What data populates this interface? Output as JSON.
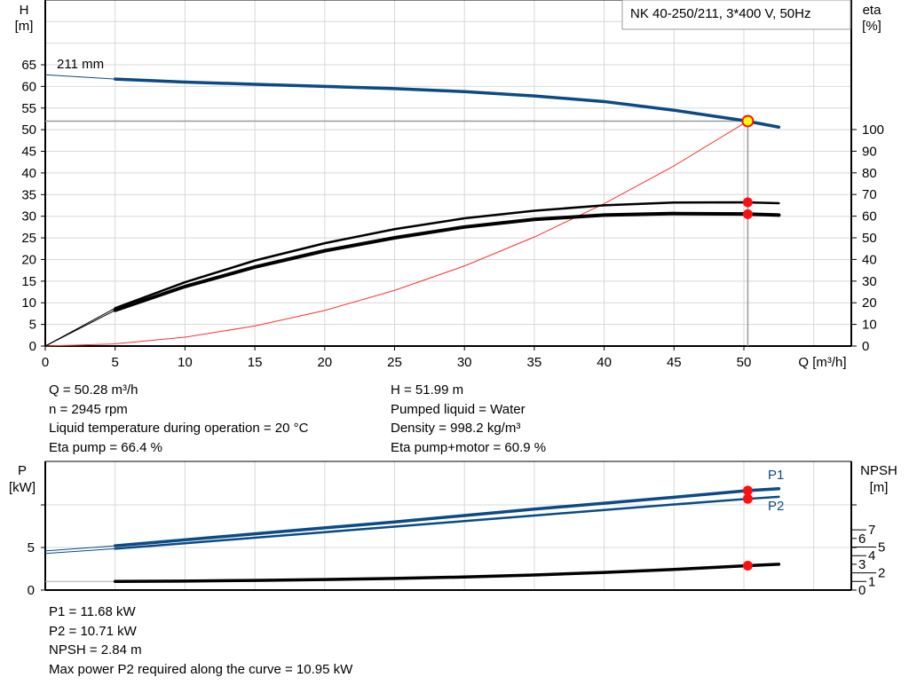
{
  "chart_data": [
    {
      "type": "line",
      "title": "NK 40-250/211, 3*400 V, 50Hz",
      "xlabel": "Q [m³/h]",
      "ylabel": "H\n[m]",
      "y2label": "eta\n[%]",
      "xlim": [
        0,
        57.6
      ],
      "ylim": [
        0,
        80
      ],
      "y2lim": [
        0,
        160
      ],
      "x_ticks": [
        0,
        5,
        10,
        15,
        20,
        25,
        30,
        35,
        40,
        45,
        50
      ],
      "y_ticks": [
        0,
        5,
        10,
        15,
        20,
        25,
        30,
        35,
        40,
        45,
        50,
        55,
        60,
        65
      ],
      "y2_ticks": [
        0,
        10,
        20,
        30,
        40,
        50,
        60,
        70,
        80,
        90,
        100
      ],
      "grid": true,
      "impeller_label": "211 mm",
      "series": [
        {
          "id": "head",
          "axis": "left",
          "color": "#0b4a85",
          "x": [
            0,
            5,
            10,
            15,
            20,
            25,
            30,
            35,
            40,
            45,
            50,
            52.5
          ],
          "y": [
            62.7,
            61.7,
            61.0,
            60.5,
            60.0,
            59.5,
            58.8,
            57.8,
            56.5,
            54.5,
            52.1,
            50.6
          ]
        },
        {
          "id": "eta_pump",
          "axis": "right",
          "color": "#000000",
          "x": [
            0,
            5,
            10,
            15,
            20,
            25,
            30,
            35,
            40,
            45,
            50,
            52.5
          ],
          "y": [
            0,
            17.5,
            29.5,
            39.5,
            47.5,
            54,
            59,
            62.5,
            65,
            66.3,
            66.4,
            66.0
          ]
        },
        {
          "id": "eta_pump_motor",
          "axis": "right",
          "color": "#000000",
          "x": [
            0,
            5,
            10,
            15,
            20,
            25,
            30,
            35,
            40,
            45,
            50,
            52.5
          ],
          "y": [
            0,
            16.5,
            27.5,
            36.5,
            44,
            50,
            55,
            58.5,
            60.5,
            61.2,
            61,
            60.5
          ]
        },
        {
          "id": "system_curve",
          "axis": "left",
          "color": "#ff3030",
          "x": [
            0,
            5,
            10,
            15,
            20,
            25,
            30,
            35,
            40,
            45,
            50.28
          ],
          "y": [
            0,
            0.51,
            2.06,
            4.63,
            8.23,
            12.86,
            18.51,
            25.19,
            32.9,
            41.64,
            51.99
          ]
        }
      ],
      "duty_point": {
        "x": 50.28,
        "y": 51.99
      },
      "markers": [
        {
          "x": 50.28,
          "y2": 66.4
        },
        {
          "x": 50.28,
          "y2": 60.9
        }
      ]
    },
    {
      "type": "line",
      "ylabel": "P\n[kW]",
      "y2label": "NPSH\n[m]",
      "xlim": [
        0,
        57.6
      ],
      "ylim": [
        0,
        15
      ],
      "y_ticks": [
        0,
        5,
        10
      ],
      "y_tick_labels": [
        "0",
        "5",
        ""
      ],
      "y2_ticks": [
        0,
        1,
        2,
        3,
        4,
        5,
        6,
        7
      ],
      "grid": true,
      "series": [
        {
          "id": "P1",
          "name": "P1",
          "axis": "left",
          "color": "#0b4a85",
          "x": [
            0,
            5,
            10,
            15,
            20,
            25,
            30,
            35,
            40,
            45,
            50.28,
            52.5
          ],
          "y": [
            4.6,
            5.2,
            5.9,
            6.6,
            7.3,
            8.0,
            8.75,
            9.5,
            10.2,
            10.9,
            11.68,
            11.9
          ]
        },
        {
          "id": "P2",
          "name": "P2",
          "axis": "left",
          "color": "#0b4a85",
          "x": [
            0,
            5,
            10,
            15,
            20,
            25,
            30,
            35,
            40,
            45,
            50.28,
            52.5
          ],
          "y": [
            4.3,
            4.85,
            5.5,
            6.15,
            6.8,
            7.45,
            8.1,
            8.75,
            9.4,
            10.05,
            10.71,
            10.95
          ]
        },
        {
          "id": "NPSH",
          "axis": "right",
          "color": "#000000",
          "x": [
            0,
            5,
            10,
            15,
            20,
            25,
            30,
            35,
            40,
            45,
            50.28,
            52.5
          ],
          "y": [
            1.0,
            1.0,
            1.05,
            1.12,
            1.22,
            1.35,
            1.52,
            1.75,
            2.05,
            2.4,
            2.84,
            3.0
          ]
        }
      ],
      "markers": [
        {
          "x": 50.28,
          "y": 11.68
        },
        {
          "x": 50.28,
          "y": 10.71
        },
        {
          "x": 50.28,
          "y2": 2.84
        }
      ]
    }
  ],
  "info1": {
    "left": [
      "Q = 50.28 m³/h",
      "n = 2945 rpm",
      "Liquid temperature during operation = 20 °C",
      "Eta pump = 66.4 %"
    ],
    "right": [
      "H = 51.99 m",
      "Pumped liquid = Water",
      "Density = 998.2 kg/m³",
      "Eta pump+motor = 60.9 %"
    ]
  },
  "info2": [
    "P1 = 11.68 kW",
    "P2 = 10.71 kW",
    "NPSH = 2.84 m",
    "Max power P2 required along the curve = 10.95 kW"
  ]
}
